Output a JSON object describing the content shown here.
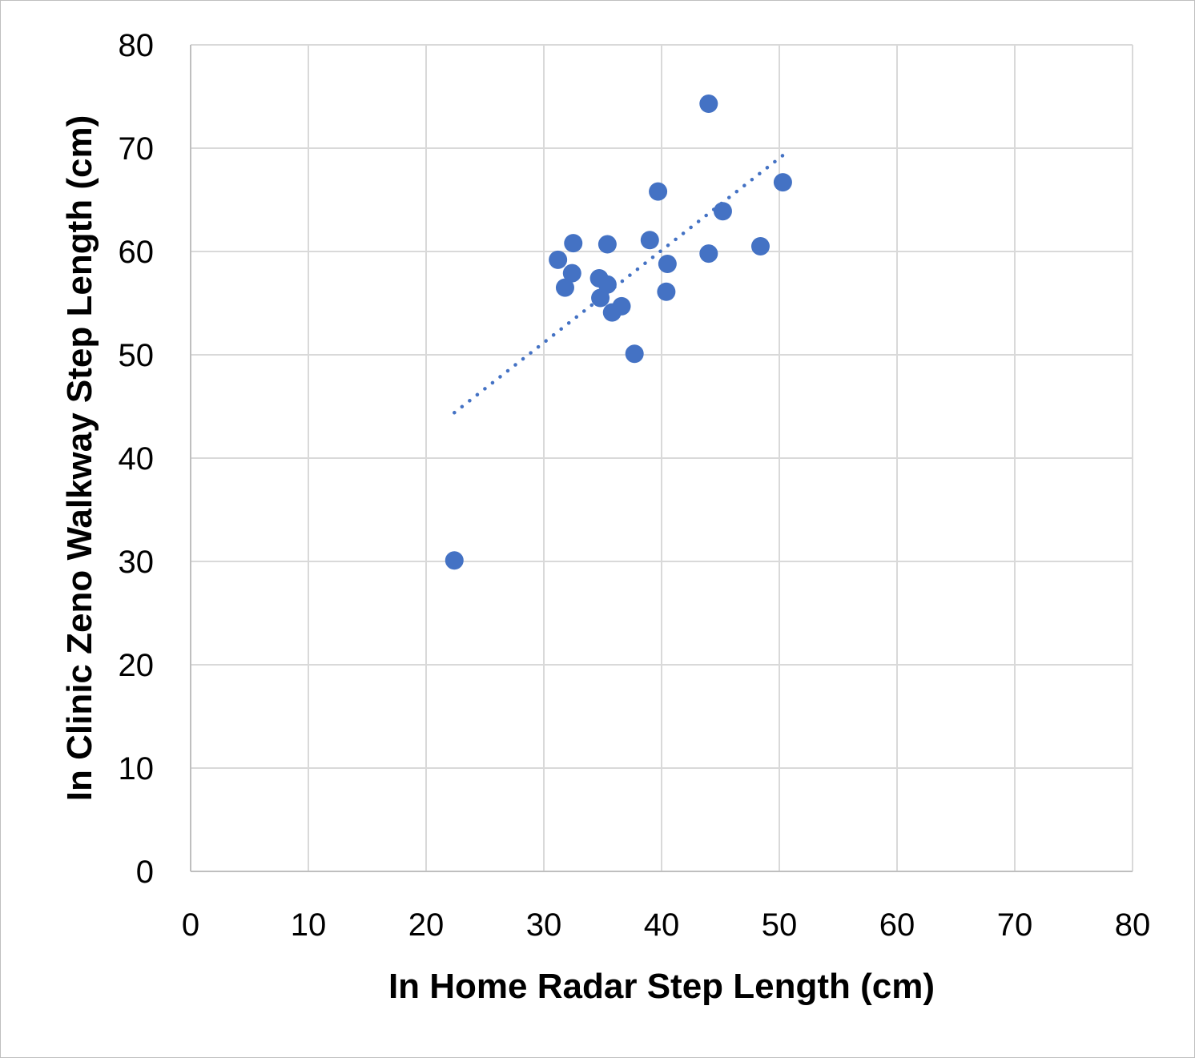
{
  "chart_data": {
    "type": "scatter",
    "title": "",
    "xlabel": "In Home Radar Step Length (cm)",
    "ylabel": "In Clinic Zeno Walkway Step Length (cm)",
    "xlim": [
      0,
      80
    ],
    "ylim": [
      0,
      80
    ],
    "x_ticks": [
      0,
      10,
      20,
      30,
      40,
      50,
      60,
      70,
      80
    ],
    "y_ticks": [
      0,
      10,
      20,
      30,
      40,
      50,
      60,
      70,
      80
    ],
    "grid": true,
    "legend": "none",
    "series": [
      {
        "color": "#4472C4",
        "points": [
          {
            "x": 22.4,
            "y": 30.1
          },
          {
            "x": 31.2,
            "y": 59.2
          },
          {
            "x": 31.8,
            "y": 56.5
          },
          {
            "x": 32.4,
            "y": 57.9
          },
          {
            "x": 32.5,
            "y": 60.8
          },
          {
            "x": 34.7,
            "y": 57.4
          },
          {
            "x": 34.8,
            "y": 55.5
          },
          {
            "x": 35.4,
            "y": 56.8
          },
          {
            "x": 35.4,
            "y": 60.7
          },
          {
            "x": 35.8,
            "y": 54.1
          },
          {
            "x": 36.6,
            "y": 54.7
          },
          {
            "x": 37.7,
            "y": 50.1
          },
          {
            "x": 39.0,
            "y": 61.1
          },
          {
            "x": 39.7,
            "y": 65.8
          },
          {
            "x": 40.4,
            "y": 56.1
          },
          {
            "x": 40.5,
            "y": 58.8
          },
          {
            "x": 44.0,
            "y": 74.3
          },
          {
            "x": 44.0,
            "y": 59.8
          },
          {
            "x": 45.2,
            "y": 63.9
          },
          {
            "x": 48.4,
            "y": 60.5
          },
          {
            "x": 50.3,
            "y": 66.7
          }
        ]
      }
    ],
    "trendline": {
      "type": "linear",
      "style": "dotted",
      "color": "#4472C4",
      "x_start": 22.4,
      "y_start": 44.4,
      "x_end": 50.3,
      "y_end": 69.3
    }
  }
}
